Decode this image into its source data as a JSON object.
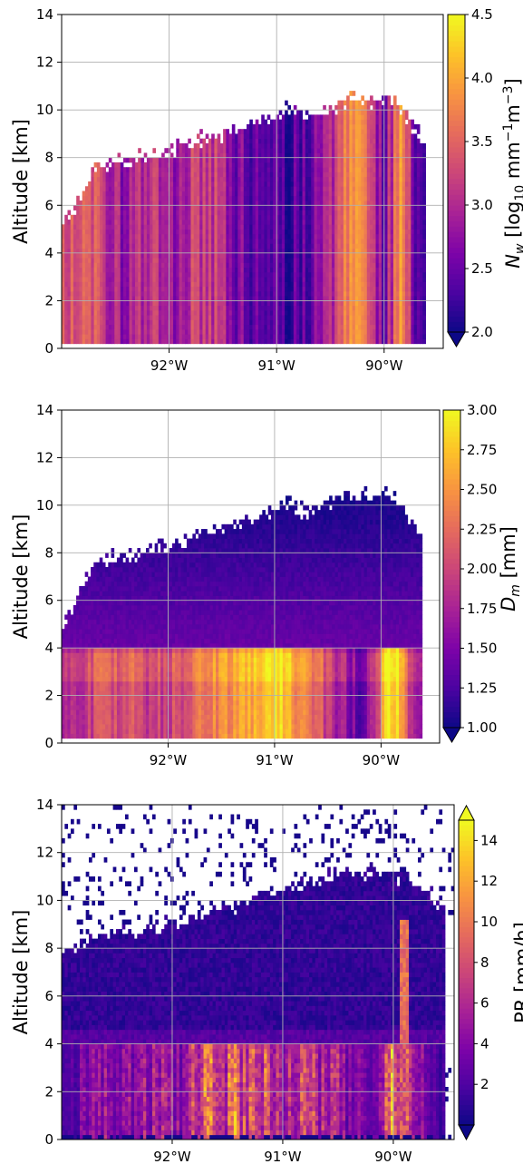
{
  "chart_data": [
    {
      "type": "heatmap",
      "panel": "top",
      "ylabel": "Altitude [km]",
      "xlim_deg": [
        -93.0,
        -89.45
      ],
      "ylim": [
        0,
        14
      ],
      "xticks": [
        {
          "value": -92,
          "label": "92°W"
        },
        {
          "value": -91,
          "label": "91°W"
        },
        {
          "value": -90,
          "label": "90°W"
        }
      ],
      "yticks": [
        0,
        2,
        4,
        6,
        8,
        10,
        12,
        14
      ],
      "grid": true,
      "colormap": "plasma",
      "colorbar": {
        "label_main": "N",
        "label_sub": "w",
        "label_rest": " [log",
        "label_log_sub": "10",
        "label_unit": " mm",
        "label_sup1": "−1",
        "label_unit2": "m",
        "label_sup2": "−3",
        "label_close": "]",
        "vmin": 2.0,
        "vmax": 4.5,
        "extend": "min",
        "ticks": [
          {
            "value": 2.0,
            "label": "2.0"
          },
          {
            "value": 2.5,
            "label": "2.5"
          },
          {
            "value": 3.0,
            "label": "3.0"
          },
          {
            "value": 3.5,
            "label": "3.5"
          },
          {
            "value": 4.0,
            "label": "4.0"
          },
          {
            "value": 4.5,
            "label": "4.5"
          }
        ]
      },
      "echo_top_km": [
        [
          -93.0,
          5.0
        ],
        [
          -92.8,
          6.5
        ],
        [
          -92.7,
          7.7
        ],
        [
          -92.5,
          7.8
        ],
        [
          -92.3,
          8.0
        ],
        [
          -92.1,
          8.2
        ],
        [
          -91.9,
          8.4
        ],
        [
          -91.7,
          8.8
        ],
        [
          -91.5,
          9.0
        ],
        [
          -91.3,
          9.3
        ],
        [
          -91.1,
          9.6
        ],
        [
          -90.9,
          10.1
        ],
        [
          -90.7,
          9.7
        ],
        [
          -90.5,
          10.0
        ],
        [
          -90.3,
          10.5
        ],
        [
          -90.1,
          10.4
        ],
        [
          -89.9,
          10.5
        ],
        [
          -89.75,
          9.5
        ],
        [
          -89.6,
          8.5
        ]
      ],
      "bottom_km": 0.25,
      "east_edge_deg": -89.62,
      "value_profile": [
        [
          -93.0,
          3.4
        ],
        [
          -92.7,
          3.3
        ],
        [
          -92.4,
          2.8
        ],
        [
          -92.2,
          3.1
        ],
        [
          -92.0,
          2.8
        ],
        [
          -91.8,
          3.2
        ],
        [
          -91.6,
          3.2
        ],
        [
          -91.4,
          2.7
        ],
        [
          -91.2,
          2.4
        ],
        [
          -91.0,
          2.2
        ],
        [
          -90.8,
          2.4
        ],
        [
          -90.6,
          2.7
        ],
        [
          -90.4,
          3.3
        ],
        [
          -90.3,
          3.9
        ],
        [
          -90.15,
          3.5
        ],
        [
          -90.0,
          2.6
        ],
        [
          -89.85,
          3.8
        ],
        [
          -89.7,
          2.5
        ],
        [
          -89.6,
          2.6
        ]
      ]
    },
    {
      "type": "heatmap",
      "panel": "middle",
      "ylabel": "Altitude [km]",
      "xlim_deg": [
        -93.0,
        -89.45
      ],
      "ylim": [
        0,
        14
      ],
      "xticks": [
        {
          "value": -92,
          "label": "92°W"
        },
        {
          "value": -91,
          "label": "91°W"
        },
        {
          "value": -90,
          "label": "90°W"
        }
      ],
      "yticks": [
        0,
        2,
        4,
        6,
        8,
        10,
        12,
        14
      ],
      "grid": true,
      "colormap": "plasma",
      "colorbar": {
        "label_main": "D",
        "label_sub": "m",
        "label_rest": " [mm]",
        "vmin": 1.0,
        "vmax": 3.0,
        "extend": "min",
        "ticks": [
          {
            "value": 1.0,
            "label": "1.00"
          },
          {
            "value": 1.25,
            "label": "1.25"
          },
          {
            "value": 1.5,
            "label": "1.50"
          },
          {
            "value": 1.75,
            "label": "1.75"
          },
          {
            "value": 2.0,
            "label": "2.00"
          },
          {
            "value": 2.25,
            "label": "2.25"
          },
          {
            "value": 2.5,
            "label": "2.50"
          },
          {
            "value": 2.75,
            "label": "2.75"
          },
          {
            "value": 3.0,
            "label": "3.00"
          }
        ]
      },
      "echo_top_km": [
        [
          -93.0,
          5.0
        ],
        [
          -92.8,
          6.5
        ],
        [
          -92.7,
          7.7
        ],
        [
          -92.5,
          7.8
        ],
        [
          -92.3,
          8.0
        ],
        [
          -92.1,
          8.2
        ],
        [
          -91.9,
          8.4
        ],
        [
          -91.7,
          8.8
        ],
        [
          -91.5,
          9.0
        ],
        [
          -91.3,
          9.3
        ],
        [
          -91.1,
          9.6
        ],
        [
          -90.9,
          10.1
        ],
        [
          -90.7,
          9.7
        ],
        [
          -90.5,
          10.0
        ],
        [
          -90.3,
          10.5
        ],
        [
          -90.1,
          10.4
        ],
        [
          -89.9,
          10.5
        ],
        [
          -89.75,
          9.5
        ],
        [
          -89.6,
          8.5
        ]
      ],
      "bottom_km": 0.25,
      "east_edge_deg": -89.62,
      "melting_layer_km": 4.0,
      "below_ml_profile": [
        [
          -93.0,
          1.7
        ],
        [
          -92.7,
          2.0
        ],
        [
          -92.4,
          2.1
        ],
        [
          -92.1,
          1.9
        ],
        [
          -91.9,
          2.0
        ],
        [
          -91.7,
          2.3
        ],
        [
          -91.5,
          2.4
        ],
        [
          -91.3,
          2.5
        ],
        [
          -91.1,
          2.7
        ],
        [
          -90.95,
          2.9
        ],
        [
          -90.8,
          2.5
        ],
        [
          -90.6,
          2.2
        ],
        [
          -90.4,
          1.7
        ],
        [
          -90.2,
          1.4
        ],
        [
          -90.05,
          1.7
        ],
        [
          -89.95,
          3.0
        ],
        [
          -89.85,
          2.8
        ],
        [
          -89.7,
          1.6
        ],
        [
          -89.6,
          1.5
        ]
      ],
      "above_ml_range": [
        1.0,
        1.4
      ]
    },
    {
      "type": "heatmap",
      "panel": "bottom",
      "ylabel": "Altitude [km]",
      "xlim_deg": [
        -93.0,
        -89.45
      ],
      "ylim": [
        0,
        14
      ],
      "xticks": [
        {
          "value": -92,
          "label": "92°W"
        },
        {
          "value": -91,
          "label": "91°W"
        },
        {
          "value": -90,
          "label": "90°W"
        }
      ],
      "yticks": [
        0,
        2,
        4,
        6,
        8,
        10,
        12,
        14
      ],
      "grid": true,
      "colormap": "plasma",
      "colorbar": {
        "label_main": "PR [mm/h]",
        "vmin": 0.0,
        "vmax": 15.0,
        "extend": "both",
        "ticks": [
          {
            "value": 2,
            "label": "2"
          },
          {
            "value": 4,
            "label": "4"
          },
          {
            "value": 6,
            "label": "6"
          },
          {
            "value": 8,
            "label": "8"
          },
          {
            "value": 10,
            "label": "10"
          },
          {
            "value": 12,
            "label": "12"
          },
          {
            "value": 14,
            "label": "14"
          }
        ]
      },
      "echo_top_km": [
        [
          -93.0,
          7.8
        ],
        [
          -92.6,
          8.5
        ],
        [
          -92.2,
          8.8
        ],
        [
          -91.8,
          9.2
        ],
        [
          -91.4,
          9.8
        ],
        [
          -91.0,
          10.5
        ],
        [
          -90.6,
          11.0
        ],
        [
          -90.2,
          11.3
        ],
        [
          -89.9,
          11.0
        ],
        [
          -89.6,
          10.0
        ]
      ],
      "melting_layer_km": 4.0,
      "below_ml_profile": [
        [
          -93.0,
          3.0
        ],
        [
          -92.6,
          5.5
        ],
        [
          -92.2,
          6.5
        ],
        [
          -91.9,
          6.0
        ],
        [
          -91.7,
          10.5
        ],
        [
          -91.5,
          11.0
        ],
        [
          -91.3,
          9.5
        ],
        [
          -91.0,
          8.5
        ],
        [
          -90.7,
          9.0
        ],
        [
          -90.4,
          5.5
        ],
        [
          -90.2,
          4.0
        ],
        [
          -90.05,
          12.0
        ],
        [
          -89.9,
          15.0
        ],
        [
          -89.8,
          6.0
        ],
        [
          -89.6,
          2.0
        ]
      ]
    }
  ]
}
